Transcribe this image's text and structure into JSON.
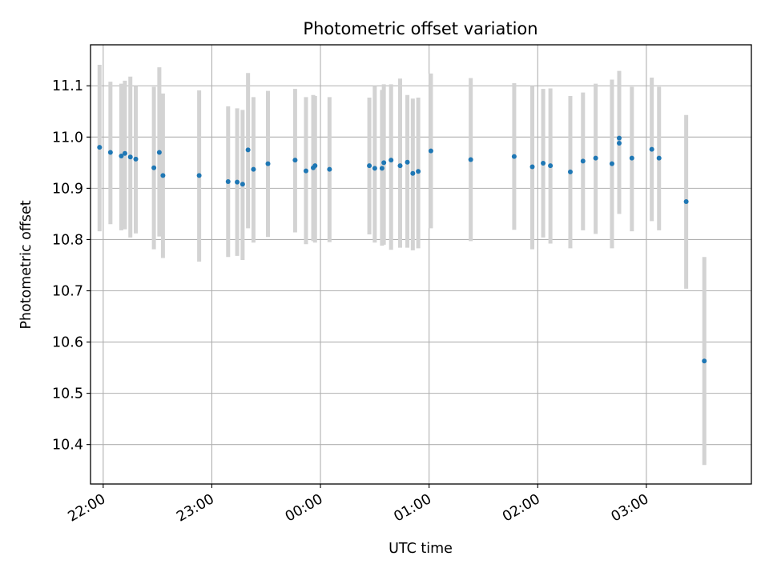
{
  "chart_data": {
    "type": "scatter",
    "title": "Photometric offset variation",
    "xlabel": "UTC time",
    "ylabel": "Photometric offset",
    "x_axis_format": "HH:MM",
    "x_ticks": [
      "22:00",
      "23:00",
      "00:00",
      "01:00",
      "02:00",
      "03:00"
    ],
    "y_ticks": [
      "10.4",
      "10.5",
      "10.6",
      "10.7",
      "10.8",
      "10.9",
      "11.0",
      "11.1"
    ],
    "xlim": [
      "21:53",
      "03:58"
    ],
    "ylim": [
      10.323,
      11.18
    ],
    "grid": true,
    "point_color": "#1f77b4",
    "errorbar_color": "#d3d3d3",
    "series": [
      {
        "x": [
          "21:58",
          "22:04",
          "22:10",
          "22:12",
          "22:15",
          "22:18",
          "22:28",
          "22:31",
          "22:33",
          "22:53",
          "23:09",
          "23:14",
          "23:17",
          "23:20",
          "23:23",
          "23:31",
          "23:46",
          "23:52",
          "23:56",
          "23:57",
          "00:05",
          "00:27",
          "00:30",
          "00:34",
          "00:35",
          "00:39",
          "00:44",
          "00:48",
          "00:51",
          "00:54",
          "01:01",
          "01:23",
          "01:47",
          "01:57",
          "02:03",
          "02:07",
          "02:18",
          "02:25",
          "02:32",
          "02:41",
          "02:45",
          "02:45",
          "02:52",
          "03:03",
          "03:07",
          "03:22",
          "03:32"
        ],
        "y": [
          10.98,
          10.97,
          10.963,
          10.968,
          10.961,
          10.957,
          10.94,
          10.97,
          10.925,
          10.925,
          10.913,
          10.912,
          10.908,
          10.975,
          10.937,
          10.948,
          10.955,
          10.934,
          10.94,
          10.944,
          10.937,
          10.944,
          10.939,
          10.939,
          10.95,
          10.955,
          10.944,
          10.951,
          10.929,
          10.933,
          10.973,
          10.956,
          10.962,
          10.942,
          10.949,
          10.944,
          10.932,
          10.953,
          10.959,
          10.948,
          10.998,
          10.988,
          10.959,
          10.976,
          10.959,
          10.874,
          10.563
        ],
        "yerr_low": [
          10.816,
          10.83,
          10.818,
          10.82,
          10.804,
          10.812,
          10.781,
          10.806,
          10.764,
          10.757,
          10.766,
          10.768,
          10.76,
          10.822,
          10.794,
          10.805,
          10.814,
          10.791,
          10.797,
          10.794,
          10.795,
          10.81,
          10.794,
          10.788,
          10.79,
          10.78,
          10.784,
          10.784,
          10.779,
          10.783,
          10.822,
          10.797,
          10.819,
          10.781,
          10.804,
          10.792,
          10.783,
          10.818,
          10.811,
          10.783,
          10.85,
          10.857,
          10.816,
          10.836,
          10.818,
          10.704,
          10.36
        ],
        "yerr_high": [
          11.141,
          11.108,
          11.104,
          11.11,
          11.118,
          11.1,
          11.098,
          11.136,
          11.085,
          11.091,
          11.06,
          11.056,
          11.053,
          11.125,
          11.078,
          11.09,
          11.094,
          11.078,
          11.082,
          11.08,
          11.078,
          11.077,
          11.1,
          11.092,
          11.103,
          11.103,
          11.114,
          11.082,
          11.075,
          11.077,
          11.124,
          11.115,
          11.105,
          11.1,
          11.094,
          11.095,
          11.08,
          11.087,
          11.104,
          11.112,
          11.129,
          11.122,
          11.098,
          11.116,
          11.098,
          11.043,
          10.766
        ]
      }
    ]
  }
}
